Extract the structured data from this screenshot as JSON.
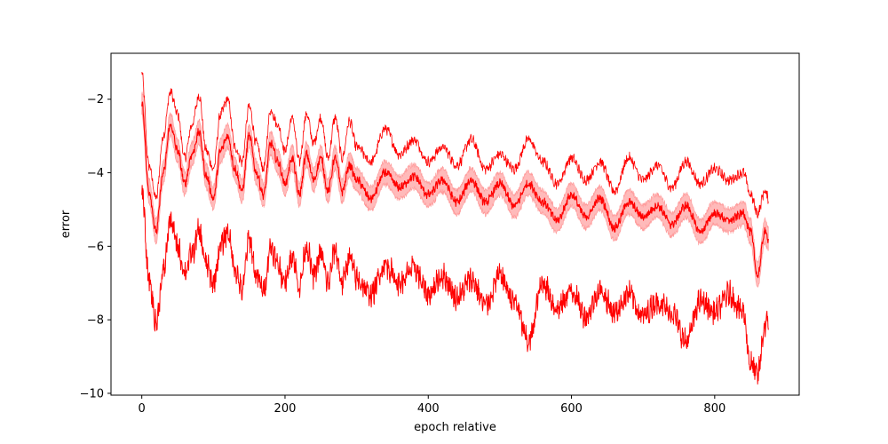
{
  "chart_data": {
    "type": "line",
    "title": "",
    "xlabel": "epoch relative",
    "ylabel": "error",
    "xlim": [
      -43,
      918
    ],
    "ylim": [
      -10.05,
      -0.75
    ],
    "xticks": [
      0,
      200,
      400,
      600,
      800
    ],
    "yticks": [
      -10,
      -8,
      -6,
      -4,
      -2
    ],
    "xtick_labels": [
      "0",
      "200",
      "400",
      "600",
      "800"
    ],
    "ytick_labels": [
      "−10",
      "−8",
      "−6",
      "−4",
      "−2"
    ],
    "grid": false,
    "legend": "none",
    "colors": {
      "line": "#ff0000",
      "band": "#ffb3b3",
      "band_edge": "#ff9a9a"
    },
    "series": [
      {
        "role": "upper",
        "x": [
          0,
          10,
          20,
          30,
          40,
          50,
          60,
          70,
          80,
          90,
          100,
          110,
          120,
          130,
          140,
          150,
          160,
          170,
          180,
          190,
          200,
          210,
          220,
          230,
          240,
          250,
          260,
          270,
          280,
          290,
          300,
          320,
          340,
          360,
          380,
          400,
          420,
          440,
          460,
          480,
          500,
          520,
          540,
          560,
          580,
          600,
          620,
          640,
          660,
          680,
          700,
          720,
          740,
          760,
          780,
          800,
          820,
          840,
          850,
          860,
          870,
          875
        ],
        "y": [
          -1.3,
          -3.8,
          -4.7,
          -3.0,
          -1.8,
          -2.4,
          -3.6,
          -2.7,
          -1.9,
          -3.4,
          -3.9,
          -2.4,
          -2.0,
          -3.3,
          -3.7,
          -2.2,
          -3.2,
          -3.9,
          -2.3,
          -2.7,
          -3.4,
          -2.5,
          -3.7,
          -2.4,
          -3.2,
          -2.5,
          -3.6,
          -2.5,
          -3.6,
          -2.6,
          -3.3,
          -3.7,
          -2.8,
          -3.5,
          -3.1,
          -3.7,
          -3.3,
          -3.8,
          -3.1,
          -3.9,
          -3.5,
          -3.9,
          -3.1,
          -3.7,
          -4.3,
          -3.6,
          -4.2,
          -3.7,
          -4.5,
          -3.6,
          -4.2,
          -3.8,
          -4.4,
          -3.7,
          -4.3,
          -3.9,
          -4.2,
          -4.0,
          -4.6,
          -5.1,
          -4.5,
          -4.7
        ],
        "noise": 0.12
      },
      {
        "role": "mean",
        "x": [
          0,
          10,
          20,
          30,
          40,
          50,
          60,
          70,
          80,
          90,
          100,
          110,
          120,
          130,
          140,
          150,
          160,
          170,
          180,
          190,
          200,
          210,
          220,
          230,
          240,
          250,
          260,
          270,
          280,
          290,
          300,
          320,
          340,
          360,
          380,
          400,
          420,
          440,
          460,
          480,
          500,
          520,
          540,
          560,
          580,
          600,
          620,
          640,
          660,
          680,
          700,
          720,
          740,
          760,
          780,
          800,
          820,
          840,
          850,
          860,
          870,
          875
        ],
        "y": [
          -2.1,
          -4.5,
          -5.6,
          -4.0,
          -2.7,
          -3.4,
          -4.3,
          -3.5,
          -2.9,
          -4.1,
          -4.7,
          -3.4,
          -3.0,
          -3.9,
          -4.5,
          -3.0,
          -4.0,
          -4.6,
          -3.2,
          -3.7,
          -4.3,
          -3.6,
          -4.6,
          -3.5,
          -4.2,
          -3.6,
          -4.5,
          -3.6,
          -4.5,
          -3.8,
          -4.2,
          -4.7,
          -4.0,
          -4.4,
          -4.1,
          -4.6,
          -4.2,
          -4.8,
          -4.2,
          -4.8,
          -4.3,
          -4.9,
          -4.3,
          -4.8,
          -5.3,
          -4.6,
          -5.2,
          -4.7,
          -5.5,
          -4.8,
          -5.2,
          -4.9,
          -5.4,
          -4.9,
          -5.6,
          -5.1,
          -5.3,
          -5.1,
          -5.6,
          -6.8,
          -5.6,
          -5.8
        ],
        "noise": 0.1,
        "band": 0.32
      },
      {
        "role": "lower",
        "x": [
          0,
          10,
          20,
          30,
          40,
          50,
          60,
          70,
          80,
          90,
          100,
          110,
          120,
          130,
          140,
          150,
          160,
          170,
          180,
          190,
          200,
          210,
          220,
          230,
          240,
          250,
          260,
          270,
          280,
          290,
          300,
          320,
          340,
          360,
          380,
          400,
          420,
          440,
          460,
          480,
          500,
          520,
          540,
          560,
          580,
          600,
          620,
          640,
          660,
          680,
          700,
          720,
          740,
          760,
          780,
          800,
          820,
          840,
          850,
          860,
          870,
          875
        ],
        "y": [
          -4.5,
          -6.9,
          -8.1,
          -6.7,
          -5.3,
          -6.0,
          -6.7,
          -6.2,
          -5.6,
          -6.5,
          -7.0,
          -6.0,
          -5.6,
          -6.6,
          -7.2,
          -5.8,
          -6.8,
          -7.2,
          -6.0,
          -6.5,
          -7.0,
          -6.2,
          -7.1,
          -6.0,
          -6.8,
          -6.2,
          -7.0,
          -6.1,
          -7.0,
          -6.3,
          -6.9,
          -7.3,
          -6.5,
          -7.0,
          -6.6,
          -7.3,
          -6.8,
          -7.4,
          -6.9,
          -7.6,
          -6.8,
          -7.5,
          -8.6,
          -7.0,
          -7.7,
          -7.2,
          -7.9,
          -7.2,
          -7.8,
          -7.3,
          -7.9,
          -7.5,
          -7.8,
          -8.6,
          -7.5,
          -7.8,
          -7.3,
          -7.8,
          -9.2,
          -9.5,
          -8.2,
          -8.0
        ],
        "noise": 0.28
      }
    ]
  }
}
